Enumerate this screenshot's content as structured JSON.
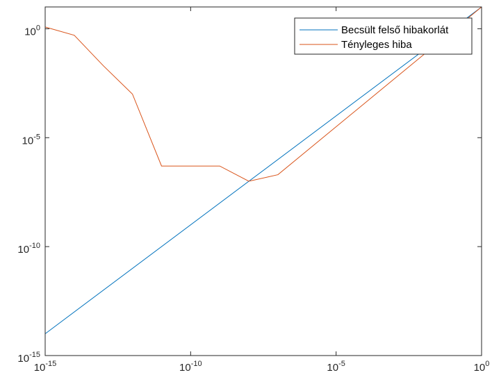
{
  "chart_data": {
    "type": "line",
    "xscale": "log",
    "yscale": "log",
    "xlim": [
      1e-15,
      1
    ],
    "ylim": [
      1e-15,
      10
    ],
    "grid": false,
    "legend_position": "top-right",
    "x_ticks": [
      {
        "base": "10",
        "exp": "-15",
        "value": 1e-15
      },
      {
        "base": "10",
        "exp": "-10",
        "value": 1e-10
      },
      {
        "base": "10",
        "exp": "-5",
        "value": 1e-05
      },
      {
        "base": "10",
        "exp": "0",
        "value": 1
      }
    ],
    "y_ticks": [
      {
        "base": "10",
        "exp": "-15",
        "value": 1e-15
      },
      {
        "base": "10",
        "exp": "-10",
        "value": 1e-10
      },
      {
        "base": "10",
        "exp": "-5",
        "value": 1e-05
      },
      {
        "base": "10",
        "exp": "0",
        "value": 1
      }
    ],
    "series": [
      {
        "name": "Becsült felső hibakorlát",
        "color": "#0072BD",
        "x": [
          1e-15,
          1
        ],
        "y": [
          1e-14,
          10
        ]
      },
      {
        "name": "Tényleges hiba",
        "color": "#D95319",
        "x": [
          1e-15,
          1e-14,
          1e-13,
          1e-12,
          1e-11,
          1e-09,
          1e-08,
          1e-07,
          1
        ],
        "y": [
          1.2,
          0.5,
          0.02,
          0.001,
          5e-07,
          5e-07,
          1e-07,
          2e-07,
          10
        ]
      }
    ]
  }
}
